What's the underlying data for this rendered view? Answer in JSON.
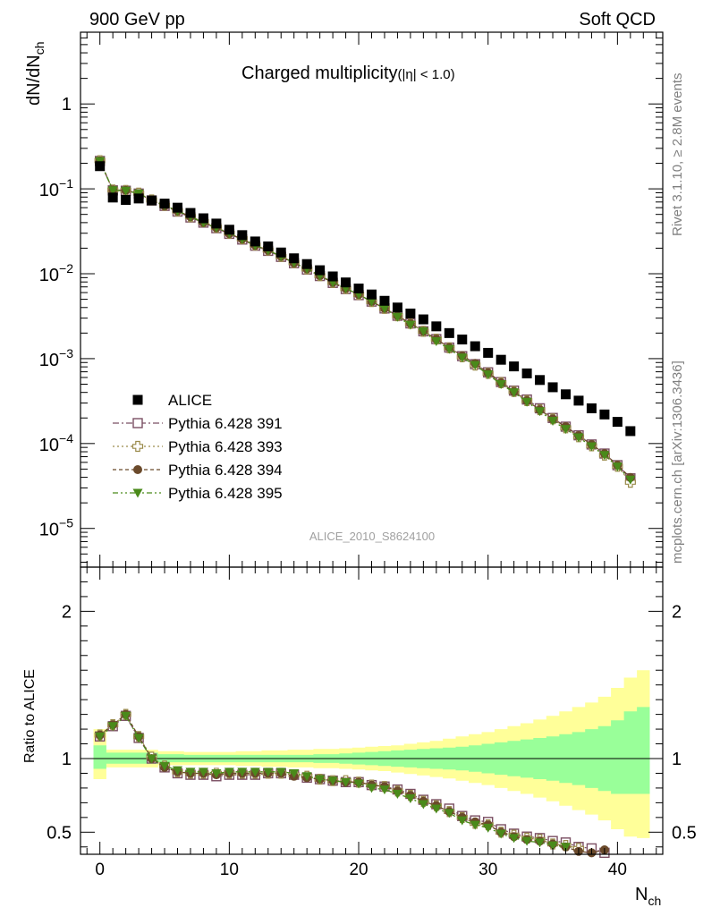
{
  "header": {
    "left": "900 GeV pp",
    "right": "Soft QCD"
  },
  "side_labels": {
    "rivet": "Rivet 3.1.10, ≥ 2.8M events",
    "mcplots": "mcplots.cern.ch [arXiv:1306.3436]"
  },
  "chart_data": {
    "type": "scatter",
    "title_main": "Charged multiplicity",
    "title_sub": "(|η| < 1.0)",
    "watermark": "ALICE_2010_S8624100",
    "top_panel": {
      "ylabel_main": "dN/dN",
      "ylabel_sub": "ch",
      "yscale": "log",
      "ylim": [
        3.5e-06,
        7
      ],
      "yticks": [
        {
          "v": 1,
          "m": "1",
          "e": ""
        },
        {
          "v": 0.1,
          "m": "10",
          "e": "−1"
        },
        {
          "v": 0.01,
          "m": "10",
          "e": "−2"
        },
        {
          "v": 0.001,
          "m": "10",
          "e": "−3"
        },
        {
          "v": 0.0001,
          "m": "10",
          "e": "−4"
        },
        {
          "v": 1e-05,
          "m": "10",
          "e": "−5"
        }
      ]
    },
    "ratio_panel": {
      "ylabel": "Ratio to ALICE",
      "ylim": [
        0.35,
        2.3
      ],
      "yticks": [
        "0.5",
        "1",
        "2"
      ],
      "bands": {
        "outer_color": "#ffff99",
        "inner_color": "#99ff99",
        "x_edges": [
          -0.5,
          0.5,
          4.5,
          6.5,
          8.5,
          10.5,
          12.5,
          14.5,
          16.5,
          18.5,
          19.5,
          20.5,
          21.5,
          22.5,
          23.5,
          24.5,
          25.5,
          26.5,
          27.5,
          28.5,
          29.5,
          30.5,
          31.5,
          32.5,
          33.5,
          34.5,
          35.5,
          36.5,
          37.5,
          38.5,
          39.5,
          40.5,
          41.5,
          42.5
        ],
        "outer_up": [
          1.2,
          1.06,
          1.05,
          1.045,
          1.045,
          1.05,
          1.055,
          1.06,
          1.065,
          1.07,
          1.075,
          1.08,
          1.085,
          1.09,
          1.1,
          1.11,
          1.12,
          1.135,
          1.15,
          1.165,
          1.18,
          1.2,
          1.22,
          1.24,
          1.265,
          1.29,
          1.32,
          1.35,
          1.38,
          1.42,
          1.48,
          1.55,
          1.6
        ],
        "outer_down": [
          0.86,
          0.94,
          0.955,
          0.955,
          0.955,
          0.95,
          0.945,
          0.94,
          0.935,
          0.93,
          0.925,
          0.92,
          0.915,
          0.905,
          0.895,
          0.885,
          0.875,
          0.865,
          0.85,
          0.835,
          0.82,
          0.8,
          0.78,
          0.76,
          0.735,
          0.71,
          0.68,
          0.65,
          0.62,
          0.58,
          0.52,
          0.47,
          0.46
        ],
        "inner_up": [
          1.09,
          1.04,
          1.03,
          1.025,
          1.025,
          1.025,
          1.025,
          1.025,
          1.03,
          1.035,
          1.04,
          1.045,
          1.05,
          1.055,
          1.06,
          1.065,
          1.07,
          1.075,
          1.08,
          1.09,
          1.1,
          1.11,
          1.12,
          1.13,
          1.14,
          1.15,
          1.165,
          1.18,
          1.2,
          1.22,
          1.26,
          1.32,
          1.35
        ],
        "inner_down": [
          0.93,
          0.965,
          0.975,
          0.975,
          0.975,
          0.975,
          0.975,
          0.975,
          0.97,
          0.965,
          0.96,
          0.955,
          0.95,
          0.945,
          0.94,
          0.935,
          0.93,
          0.925,
          0.92,
          0.91,
          0.9,
          0.89,
          0.88,
          0.87,
          0.86,
          0.85,
          0.835,
          0.82,
          0.8,
          0.78,
          0.76,
          0.76,
          0.76
        ]
      }
    },
    "xaxis": {
      "label_main": "N",
      "label_sub": "ch",
      "xlim": [
        -1.5,
        43.5
      ],
      "ticks": [
        "0",
        "10",
        "20",
        "30",
        "40"
      ]
    },
    "legend": {
      "position": "lower-left",
      "entries": [
        "ALICE",
        "Pythia 6.428 391",
        "Pythia 6.428 393",
        "Pythia 6.428 394",
        "Pythia 6.428 395"
      ]
    },
    "alice": {
      "name": "ALICE",
      "x": [
        0,
        1,
        2,
        3,
        4,
        5,
        6,
        7,
        8,
        9,
        10,
        11,
        12,
        13,
        14,
        15,
        16,
        17,
        18,
        19,
        20,
        21,
        22,
        23,
        24,
        25,
        26,
        27,
        28,
        29,
        30,
        31,
        32,
        33,
        34,
        35,
        36,
        37,
        38,
        39,
        40,
        41
      ],
      "y": [
        0.185,
        0.079,
        0.074,
        0.077,
        0.073,
        0.067,
        0.06,
        0.052,
        0.045,
        0.039,
        0.033,
        0.0285,
        0.024,
        0.021,
        0.0178,
        0.0152,
        0.013,
        0.011,
        0.0093,
        0.0079,
        0.0067,
        0.0057,
        0.0048,
        0.004,
        0.0034,
        0.0029,
        0.0024,
        0.002,
        0.00168,
        0.0014,
        0.00117,
        0.00097,
        0.00081,
        0.00067,
        0.00056,
        0.00046,
        0.00038,
        0.00032,
        0.00026,
        0.00022,
        0.00018,
        0.00014
      ]
    },
    "series": [
      {
        "name": "Pythia 6.428 391",
        "color": "#7b4f63",
        "marker": "square-open",
        "dash": "7,3,2,3",
        "x": [
          0,
          1,
          2,
          3,
          4,
          5,
          6,
          7,
          8,
          9,
          10,
          11,
          12,
          13,
          14,
          15,
          16,
          17,
          18,
          19,
          20,
          21,
          22,
          23,
          24,
          25,
          26,
          27,
          28,
          29,
          30,
          31,
          32,
          33,
          34,
          35,
          36,
          37,
          38,
          39,
          40,
          41
        ],
        "y": [
          0.213,
          0.096,
          0.095,
          0.088,
          0.073,
          0.063,
          0.054,
          0.046,
          0.04,
          0.0344,
          0.0295,
          0.0253,
          0.0214,
          0.0186,
          0.0158,
          0.0133,
          0.0112,
          0.0094,
          0.0078,
          0.0066,
          0.0056,
          0.0047,
          0.0039,
          0.0032,
          0.0026,
          0.0021,
          0.0017,
          0.00135,
          0.00107,
          0.00086,
          0.00069,
          0.00053,
          0.00042,
          0.00033,
          0.00026,
          0.0002,
          0.000158,
          0.000125,
          9.75e-05,
          7.62e-05,
          5.56e-05,
          3.89e-05
        ],
        "ratio": [
          1.15,
          1.22,
          1.29,
          1.14,
          1.0,
          0.94,
          0.9,
          0.89,
          0.89,
          0.88,
          0.89,
          0.89,
          0.89,
          0.9,
          0.9,
          0.89,
          0.87,
          0.86,
          0.85,
          0.84,
          0.84,
          0.82,
          0.81,
          0.79,
          0.76,
          0.72,
          0.69,
          0.66,
          0.61,
          0.58,
          0.57,
          0.52,
          0.49,
          0.47,
          0.46,
          0.44,
          0.43,
          0.4,
          0.39,
          0.36
        ]
      },
      {
        "name": "Pythia 6.428 393",
        "color": "#9a8a4a",
        "marker": "cross-open",
        "dash": "2,3",
        "x": [
          0,
          1,
          2,
          3,
          4,
          5,
          6,
          7,
          8,
          9,
          10,
          11,
          12,
          13,
          14,
          15,
          16,
          17,
          18,
          19,
          20,
          21,
          22,
          23,
          24,
          25,
          26,
          27,
          28,
          29,
          30,
          31,
          32,
          33,
          34,
          35,
          36,
          37,
          38,
          39,
          40,
          41
        ],
        "y": [
          0.215,
          0.097,
          0.096,
          0.089,
          0.074,
          0.064,
          0.055,
          0.047,
          0.041,
          0.0352,
          0.03,
          0.0258,
          0.0218,
          0.019,
          0.016,
          0.0135,
          0.0114,
          0.0095,
          0.0079,
          0.0067,
          0.0057,
          0.0047,
          0.0039,
          0.0032,
          0.0026,
          0.0021,
          0.0017,
          0.00134,
          0.00105,
          0.00084,
          0.00067,
          0.00052,
          0.00041,
          0.00032,
          0.00025,
          0.000195,
          0.000153,
          0.00012,
          9.4e-05,
          7.3e-05,
          5.4e-05,
          3.5e-05
        ],
        "ratio": [
          1.16,
          1.23,
          1.3,
          1.15,
          1.01,
          0.95,
          0.91,
          0.9,
          0.9,
          0.9,
          0.9,
          0.9,
          0.9,
          0.9,
          0.9,
          0.89,
          0.88,
          0.86,
          0.85,
          0.85,
          0.84,
          0.82,
          0.81,
          0.78,
          0.75,
          0.71,
          0.68,
          0.64,
          0.6,
          0.56,
          0.55,
          0.5,
          0.48,
          0.46,
          0.45,
          0.42,
          0.41,
          0.39
        ]
      },
      {
        "name": "Pythia 6.428 394",
        "color": "#6b4a2b",
        "marker": "circle",
        "dash": "4,3",
        "x": [
          0,
          1,
          2,
          3,
          4,
          5,
          6,
          7,
          8,
          9,
          10,
          11,
          12,
          13,
          14,
          15,
          16,
          17,
          18,
          19,
          20,
          21,
          22,
          23,
          24,
          25,
          26,
          27,
          28,
          29,
          30,
          31,
          32,
          33,
          34,
          35,
          36,
          37,
          38,
          39,
          40,
          41
        ],
        "y": [
          0.214,
          0.097,
          0.096,
          0.088,
          0.073,
          0.063,
          0.055,
          0.047,
          0.04,
          0.0348,
          0.0297,
          0.0256,
          0.0216,
          0.0189,
          0.016,
          0.0134,
          0.0114,
          0.0095,
          0.0079,
          0.0067,
          0.0057,
          0.0047,
          0.0039,
          0.0032,
          0.0026,
          0.0021,
          0.0017,
          0.00135,
          0.00108,
          0.00088,
          0.00068,
          0.00052,
          0.00041,
          0.00032,
          0.00025,
          0.000195,
          0.000158,
          0.000124,
          9.75e-05,
          7.62e-05,
          5.56e-05,
          3.98e-05
        ],
        "ratio": [
          1.16,
          1.23,
          1.3,
          1.15,
          1.0,
          0.94,
          0.91,
          0.9,
          0.9,
          0.89,
          0.9,
          0.9,
          0.9,
          0.9,
          0.9,
          0.88,
          0.87,
          0.86,
          0.85,
          0.84,
          0.84,
          0.82,
          0.81,
          0.78,
          0.75,
          0.71,
          0.68,
          0.64,
          0.6,
          0.57,
          0.55,
          0.5,
          0.47,
          0.45,
          0.44,
          0.42,
          0.4,
          0.37,
          0.36,
          0.38
        ]
      },
      {
        "name": "Pythia 6.428 395",
        "color": "#4a8a1a",
        "marker": "triangle-down",
        "dash": "6,3,2,3,2,3",
        "x": [
          0,
          1,
          2,
          3,
          4,
          5,
          6,
          7,
          8,
          9,
          10,
          11,
          12,
          13,
          14,
          15,
          16,
          17,
          18,
          19,
          20,
          21,
          22,
          23,
          24,
          25,
          26,
          27,
          28,
          29,
          30,
          31,
          32,
          33,
          34,
          35,
          36,
          37,
          38,
          39,
          40,
          41
        ],
        "y": [
          0.212,
          0.096,
          0.095,
          0.088,
          0.074,
          0.064,
          0.055,
          0.047,
          0.04,
          0.0349,
          0.0298,
          0.0256,
          0.0216,
          0.0189,
          0.016,
          0.0135,
          0.0114,
          0.0095,
          0.0079,
          0.0067,
          0.0057,
          0.0047,
          0.0039,
          0.0031,
          0.0025,
          0.0021,
          0.0016,
          0.0013,
          0.00103,
          0.00084,
          0.00065,
          0.0005,
          0.0004,
          0.00031,
          0.00024,
          0.000185,
          0.000148,
          0.000118,
          9.25e-05,
          7.3e-05,
          5.35e-05,
          3.75e-05
        ],
        "ratio": [
          1.15,
          1.22,
          1.29,
          1.14,
          1.0,
          0.95,
          0.92,
          0.91,
          0.91,
          0.9,
          0.91,
          0.91,
          0.91,
          0.91,
          0.91,
          0.9,
          0.88,
          0.86,
          0.85,
          0.84,
          0.83,
          0.8,
          0.79,
          0.76,
          0.73,
          0.69,
          0.66,
          0.63,
          0.58,
          0.55,
          0.53,
          0.49,
          0.46,
          0.44,
          0.43,
          0.41,
          0.4
        ]
      }
    ]
  }
}
